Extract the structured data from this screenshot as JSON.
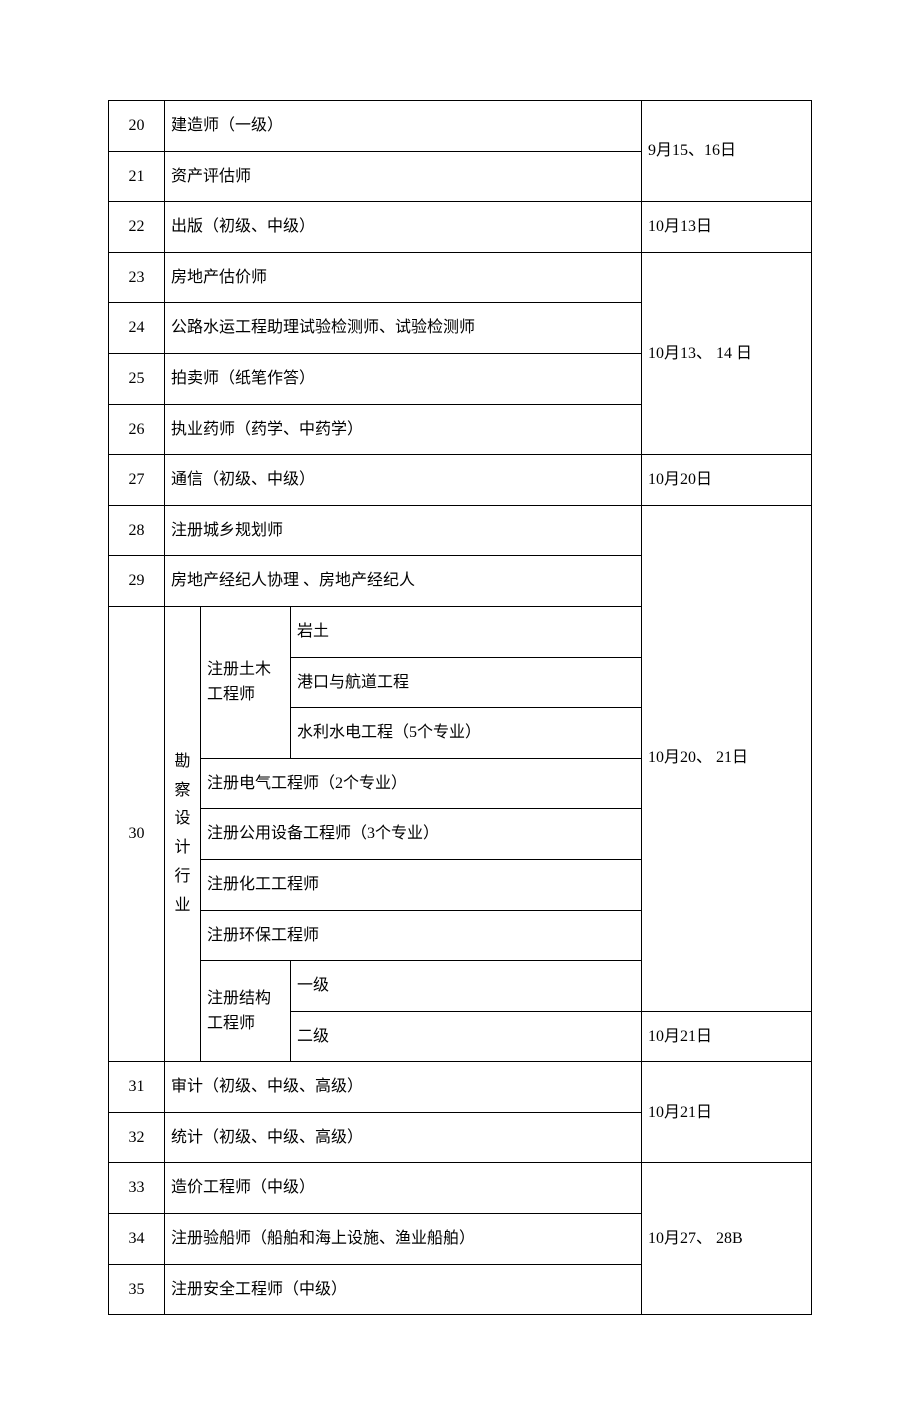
{
  "rows": {
    "r20_num": "20",
    "r20_name": "建造师（一级）",
    "r21_num": "21",
    "r21_name": "资产评估师",
    "date_20_21": "9月15、16日",
    "r22_num": "22",
    "r22_name": "出版（初级、中级）",
    "date_22": "10月13日",
    "r23_num": "23",
    "r23_name": "房地产估价师",
    "r24_num": "24",
    "r24_name": "公路水运工程助理试验检测师、试验检测师",
    "r25_num": "25",
    "r25_name": "拍卖师（纸笔作答）",
    "r26_num": "26",
    "r26_name": "执业药师（药学、中药学）",
    "date_23_26": "10月13、 14 日",
    "r27_num": "27",
    "r27_name": "通信（初级、中级）",
    "date_27": "10月20日",
    "r28_num": "28",
    "r28_name": "注册城乡规划师",
    "r29_num": "29",
    "r29_name": "房地产经纪人协理 、房地产经纪人",
    "r30_num": "30",
    "r30_cat": "勘察设计行业",
    "r30_tumu": "注册土木工程师",
    "r30_tumu_a": "岩土",
    "r30_tumu_b": "港口与航道工程",
    "r30_tumu_c": "水利水电工程（5个专业）",
    "r30_dianqi": "注册电气工程师（2个专业）",
    "r30_gongyong": "注册公用设备工程师（3个专业）",
    "r30_huagong": "注册化工工程师",
    "r30_huanbao": "注册环保工程师",
    "r30_jiegou": "注册结构工程师",
    "r30_jiegou_a": "一级",
    "r30_jiegou_b": "二级",
    "date_28_30a": "10月20、 21日",
    "date_30b": "10月21日",
    "r31_num": "31",
    "r31_name": "审计（初级、中级、高级）",
    "r32_num": "32",
    "r32_name": "统计（初级、中级、高级）",
    "date_31_32": "10月21日",
    "r33_num": "33",
    "r33_name": "造价工程师（中级）",
    "r34_num": "34",
    "r34_name": "注册验船师（船舶和海上设施、渔业船舶）",
    "r35_num": "35",
    "r35_name": "注册安全工程师（中级）",
    "date_33_35": "10月27、 28B"
  }
}
